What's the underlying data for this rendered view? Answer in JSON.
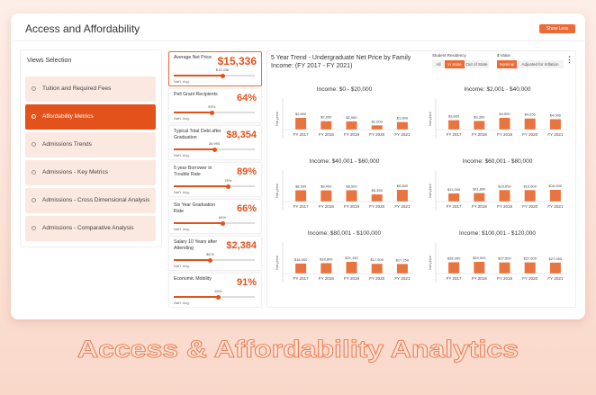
{
  "header": {
    "title": "Access and Affordability",
    "button": "Show Less"
  },
  "sidebar": {
    "title": "Views Selection",
    "active": 1,
    "items": [
      "Tuition and Required Fees",
      "Affordability Metrics",
      "Admissions Trends",
      "Admissions - Key Metrics",
      "Admissions - Cross Dimensional Analysis",
      "Admissions - Comparative Analysis"
    ]
  },
  "metrics": [
    {
      "label": "Average Net Price",
      "value": "$15,336",
      "avg": "$13,336",
      "avg_note": "Nat'l. Avg."
    },
    {
      "label": "Pell Grant Recipients",
      "value": "64%",
      "avg": "59%",
      "avg_note": "Nat'l. Avg."
    },
    {
      "label": "Typical Total Debt after Graduation",
      "value": "$8,354",
      "avg": "26,995",
      "avg_note": "Nat'l. Avg."
    },
    {
      "label": "5 year Borrower in Trouble Rate",
      "value": "89%",
      "avg": "76%",
      "avg_note": "Nat'l. Avg."
    },
    {
      "label": "Six Year Graduation Rate",
      "value": "66%",
      "avg": "64%",
      "avg_note": "Nat'l. Avg."
    },
    {
      "label": "Salary 10 Years after Attending",
      "value": "$2,384",
      "avg": "$67k",
      "avg_note": "Nat'l. Avg."
    },
    {
      "label": "Economic Mobility",
      "value": "91%",
      "avg": "60%",
      "avg_note": "Nat'l. Avg."
    }
  ],
  "trend": {
    "title": "5 Year Trend - Undergraduate Net Price by Family Income: (FY 2017 - FY 2021)",
    "residency_label": "Student Residency",
    "residency_options": [
      "All",
      "In State",
      "Out of State"
    ],
    "residency_active": 1,
    "value_label": "$ Value",
    "value_options": [
      "Nominal",
      "Adjusted for Inflation"
    ],
    "value_active": 0,
    "y_label": "Net price",
    "color": "#e8743f",
    "charts": [
      {
        "title": "Income: $0 - $20,000",
        "categories": [
          "FY 2017",
          "FY 2018",
          "FY 2019",
          "FY 2020",
          "FY 2021"
        ],
        "values": [
          2800,
          2000,
          1950,
          1000,
          1800
        ],
        "value_labels": [
          "$2,800",
          "$2,000",
          "$1,950",
          "$1,000",
          "$1,800"
        ]
      },
      {
        "title": "Income: $2,001 - $40,000",
        "categories": [
          "FY 2017",
          "FY 2018",
          "FY 2019",
          "FY 2020",
          "FY 2021"
        ],
        "values": [
          3600,
          3300,
          4500,
          4250,
          4000
        ],
        "value_labels": [
          "$3,600",
          "$3,300",
          "$4,500",
          "$4,250",
          "$4,000"
        ]
      },
      {
        "title": "Income: $40,001 - $60,000",
        "categories": [
          "FY 2017",
          "FY 2018",
          "FY 2019",
          "FY 2020",
          "FY 2021"
        ],
        "values": [
          8500,
          8400,
          8500,
          5350,
          8800
        ],
        "value_labels": [
          "$8,500",
          "$8,400",
          "$8,500",
          "$5,350",
          "$8,800"
        ]
      },
      {
        "title": "Income: $60,001 - $80,000",
        "categories": [
          "FY 2017",
          "FY 2018",
          "FY 2019",
          "FY 2020",
          "FY 2021"
        ],
        "values": [
          11000,
          11600,
          15650,
          15600,
          16000
        ],
        "value_labels": [
          "$11,000",
          "$11,600",
          "$15,650",
          "$15,600",
          "$16,000"
        ]
      },
      {
        "title": "Income: $80,001 - $100,000",
        "categories": [
          "FY 2017",
          "FY 2018",
          "FY 2019",
          "FY 2020",
          "FY 2021"
        ],
        "values": [
          18000,
          18800,
          21150,
          17500,
          17250
        ],
        "value_labels": [
          "$18,000",
          "$18,800",
          "$21,150",
          "$17,500",
          "$17,250"
        ]
      },
      {
        "title": "Income: $100,001 - $120,000",
        "categories": [
          "FY 2017",
          "FY 2018",
          "FY 2019",
          "FY 2020",
          "FY 2021"
        ],
        "values": [
          28000,
          29000,
          27500,
          27600,
          27050
        ],
        "value_labels": [
          "$28,000",
          "$29,000",
          "$27,500",
          "$27,600",
          "$27,050"
        ]
      }
    ]
  },
  "banner": "Access & Affordability Analytics"
}
